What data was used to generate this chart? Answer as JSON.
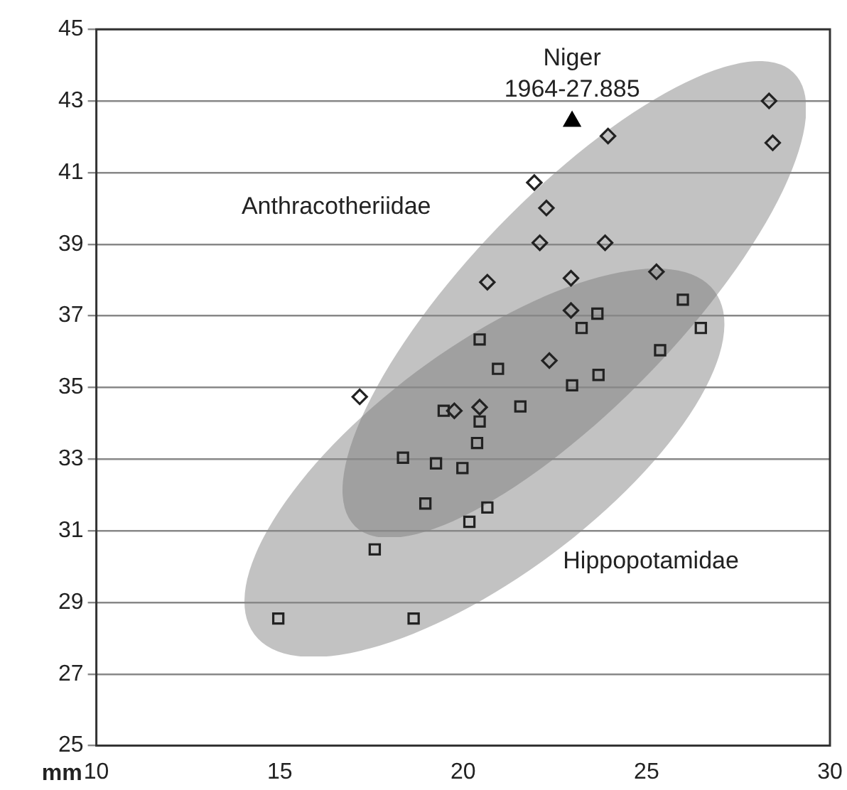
{
  "chart_data": {
    "type": "scatter",
    "xlabel": "mm",
    "xlim": [
      10,
      30
    ],
    "xticks": [
      10,
      15,
      20,
      25,
      30
    ],
    "ylim": [
      25,
      45
    ],
    "yticks": [
      25,
      27,
      29,
      31,
      33,
      35,
      37,
      39,
      41,
      43,
      45
    ],
    "grid": "y",
    "legend": false,
    "series": [
      {
        "color": "#222222",
        "marker": "diamond",
        "x": [
          28.34,
          28.44,
          23.95,
          21.94,
          22.27,
          22.09,
          23.87,
          20.66,
          22.94,
          25.27,
          22.94,
          22.35,
          17.18,
          19.76,
          20.45
        ],
        "values": [
          43.0,
          41.83,
          42.02,
          40.72,
          40.01,
          39.04,
          39.04,
          37.94,
          38.05,
          38.23,
          37.15,
          35.75,
          34.74,
          34.35,
          34.45
        ]
      },
      {
        "color": "#222222",
        "marker": "square",
        "x": [
          20.45,
          23.23,
          26.48,
          25.37,
          20.95,
          23.69,
          22.97,
          21.56,
          19.47,
          20.45,
          20.38,
          18.36,
          19.26,
          19.98,
          18.97,
          20.66,
          20.17,
          17.59,
          14.96,
          18.65,
          25.99,
          23.66
        ],
        "values": [
          36.34,
          36.66,
          36.66,
          36.04,
          35.52,
          35.35,
          35.06,
          34.47,
          34.35,
          34.05,
          33.45,
          33.04,
          32.88,
          32.75,
          31.76,
          31.65,
          31.25,
          30.48,
          28.55,
          28.55,
          37.45,
          37.06
        ]
      },
      {
        "color": "#000000",
        "marker": "triangle",
        "x": [
          22.97
        ],
        "values": [
          42.43
        ]
      }
    ],
    "annotations": [
      {
        "text": "Niger\n1964-27.885",
        "x": 22.97,
        "y": 42.43
      },
      "Anthracotheriidae",
      "Hippopotamidae"
    ]
  }
}
